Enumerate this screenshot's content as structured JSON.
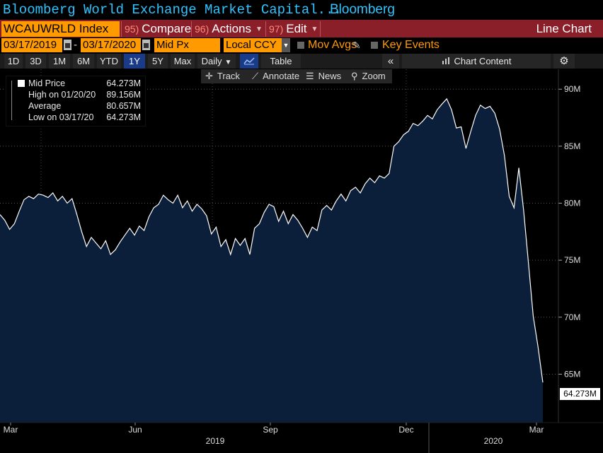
{
  "window": {
    "title": "Bloomberg World Exchange Market Capital...",
    "brand": "Bloomberg"
  },
  "command_bar": {
    "ticker": "WCAUWRLD Index",
    "buttons": [
      {
        "num": "95)",
        "label": "Compare"
      },
      {
        "num": "96)",
        "label": "Actions"
      },
      {
        "num": "97)",
        "label": "Edit"
      }
    ],
    "chart_type": "Line Chart"
  },
  "date_row": {
    "start_date": "03/17/2019",
    "end_date": "03/17/2020",
    "separator": "-",
    "field": "Mid Px",
    "currency": "Local CCY",
    "mov_avgs": "Mov Avgs",
    "key_events": "Key Events"
  },
  "toolbar": {
    "ranges": [
      "1D",
      "3D",
      "1M",
      "6M",
      "YTD",
      "1Y",
      "5Y",
      "Max"
    ],
    "active_range": "1Y",
    "frequency": "Daily",
    "table": "Table",
    "chart_content": "Chart Content"
  },
  "subtools": {
    "track": "Track",
    "annotate": "Annotate",
    "news": "News",
    "zoom": "Zoom"
  },
  "legend": {
    "mid_price_label": "Mid Price",
    "mid_price_value": "64.273M",
    "high_label": "High on 01/20/20",
    "high_value": "89.156M",
    "average_label": "Average",
    "average_value": "80.657M",
    "low_label": "Low on 03/17/20",
    "low_value": "64.273M"
  },
  "colors": {
    "area_fill": "#0b1f3a",
    "line": "#ffffff",
    "accent_orange": "#ff9a00",
    "title_blue": "#2ec4ff",
    "cmd_red": "#8a1f2a"
  },
  "chart_data": {
    "type": "area",
    "title": "Bloomberg World Exchange Market Capital...",
    "series": [
      {
        "name": "Mid Price",
        "values": [
          79.0,
          78.5,
          77.7,
          78.2,
          79.3,
          80.3,
          80.6,
          80.4,
          80.8,
          80.7,
          80.5,
          80.9,
          80.2,
          80.6,
          80.0,
          80.4,
          79.0,
          77.5,
          76.2,
          77.0,
          76.5,
          76.0,
          76.7,
          75.5,
          75.9,
          76.6,
          77.2,
          77.8,
          77.2,
          78.0,
          77.6,
          78.8,
          79.6,
          79.9,
          80.7,
          80.3,
          80.0,
          80.7,
          79.6,
          80.2,
          79.3,
          79.9,
          79.5,
          78.9,
          77.3,
          77.9,
          76.2,
          76.8,
          75.5,
          76.9,
          76.3,
          76.9,
          75.5,
          77.8,
          78.2,
          79.2,
          79.9,
          79.7,
          78.4,
          79.3,
          78.2,
          79.0,
          78.5,
          77.8,
          77.0,
          77.9,
          77.6,
          79.4,
          79.8,
          79.4,
          80.2,
          80.8,
          80.2,
          81.1,
          81.4,
          80.9,
          81.7,
          82.2,
          81.8,
          82.4,
          82.2,
          82.6,
          85.0,
          85.4,
          86.0,
          86.3,
          87.0,
          86.8,
          87.2,
          87.7,
          87.4,
          88.2,
          88.7,
          89.156,
          88.2,
          86.6,
          86.7,
          84.8,
          86.3,
          87.7,
          88.6,
          88.3,
          88.5,
          87.9,
          86.5,
          84.2,
          80.6,
          79.6,
          83.1,
          79.4,
          74.8,
          70.1,
          67.4,
          64.273
        ]
      }
    ],
    "x_tick_labels": [
      "Mar",
      "Jun",
      "Sep",
      "Dec",
      "Mar"
    ],
    "year_labels": [
      "2019",
      "2020"
    ],
    "y_tick_labels": [
      "65M",
      "70M",
      "75M",
      "80M",
      "85M",
      "90M"
    ],
    "y_ticks": [
      65,
      70,
      75,
      80,
      85,
      90
    ],
    "ylim": [
      60.75,
      91.75
    ],
    "last_value_label": "64.273M",
    "grid": true,
    "legend_position": "top-left"
  }
}
